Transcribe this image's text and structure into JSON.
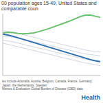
{
  "chart_data": {
    "type": "line",
    "title": "00 population ages 15-49, United States and comparable coun",
    "annotations": [
      "ies include Australia, Austria, Belgium, Canada, France, Germany, Japan, the Netherlands, Sweden",
      "Metrics & Evaluation Global Burden of Disease (GBD) data",
      "Health"
    ],
    "x": [
      2000,
      2001,
      2002,
      2003,
      2004,
      2005,
      2006,
      2007,
      2008,
      2009,
      2010,
      2011,
      2012,
      2013,
      2014,
      2015,
      2016,
      2017,
      2018,
      2019
    ],
    "xlim": [
      2000,
      2019
    ],
    "ylim": [
      100,
      300
    ],
    "tick_labels": false,
    "grid": false,
    "series": [
      {
        "color": "#cfd6df",
        "values": [
          228,
          226,
          224,
          221,
          218,
          214,
          210,
          206,
          202,
          198,
          194,
          190,
          186,
          182,
          178,
          174,
          170,
          168,
          166,
          164
        ]
      },
      {
        "color": "#cfd6df",
        "values": [
          215,
          212,
          209,
          205,
          201,
          197,
          193,
          189,
          185,
          181,
          177,
          173,
          169,
          165,
          161,
          157,
          153,
          150,
          148,
          146
        ]
      },
      {
        "color": "#cfd6df",
        "values": [
          205,
          201,
          197,
          193,
          189,
          185,
          181,
          177,
          173,
          169,
          165,
          161,
          157,
          153,
          149,
          145,
          141,
          138,
          135,
          132
        ]
      },
      {
        "color": "#cfd6df",
        "values": [
          245,
          243,
          240,
          236,
          232,
          228,
          224,
          220,
          215,
          211,
          207,
          203,
          199,
          195,
          191,
          187,
          183,
          180,
          178,
          176
        ]
      },
      {
        "color": "#2b6cb0",
        "values": [
          234,
          231,
          227,
          222,
          217,
          212,
          207,
          202,
          197,
          192,
          187,
          182,
          177,
          172,
          167,
          162,
          157,
          152,
          148,
          145
        ]
      },
      {
        "color": "#6cc070",
        "values": [
          238,
          240,
          239,
          236,
          235,
          236,
          238,
          242,
          247,
          252,
          258,
          264,
          270,
          276,
          283,
          290,
          295,
          296,
          292,
          288
        ]
      }
    ]
  }
}
